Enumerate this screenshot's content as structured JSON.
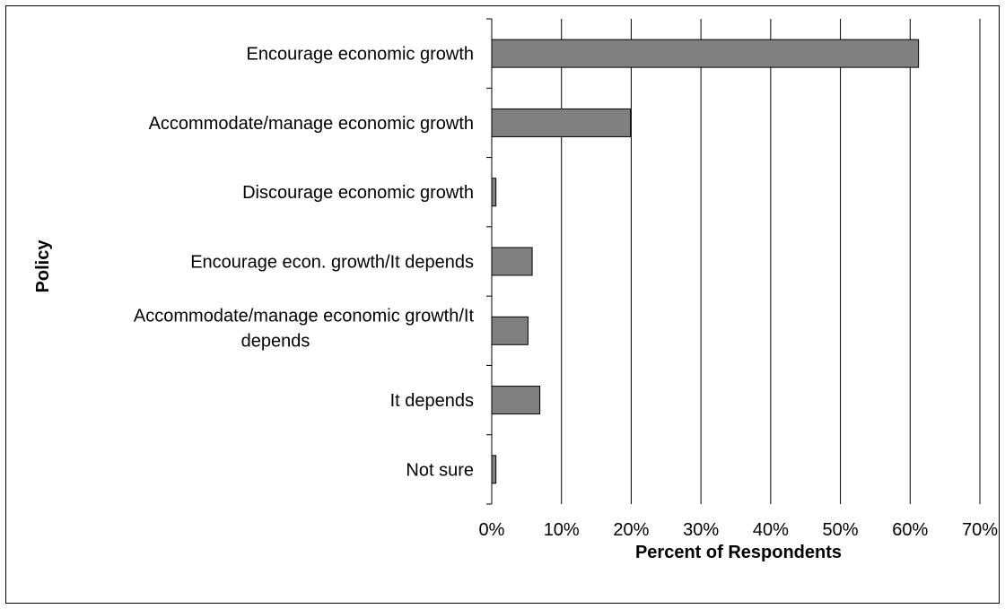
{
  "chart_data": {
    "type": "bar",
    "orientation": "horizontal",
    "categories": [
      "Encourage economic growth",
      "Accommodate/manage economic growth",
      "Discourage economic growth",
      "Encourage econ. growth/It depends",
      "Accommodate/manage economic growth/It depends",
      "It depends",
      "Not sure"
    ],
    "category_label_lines": [
      [
        "Encourage economic growth"
      ],
      [
        "Accommodate/manage economic growth"
      ],
      [
        "Discourage economic growth"
      ],
      [
        "Encourage econ. growth/It depends"
      ],
      [
        "Accommodate/manage economic growth/It",
        "depends"
      ],
      [
        "It depends"
      ],
      [
        "Not sure"
      ]
    ],
    "values": [
      61.2,
      19.9,
      0.6,
      5.8,
      5.2,
      6.9,
      0.6
    ],
    "unit": "%",
    "title": "",
    "xlabel": "Percent of Respondents",
    "ylabel": "Policy",
    "xlim": [
      0,
      70
    ],
    "xticks": [
      0,
      10,
      20,
      30,
      40,
      50,
      60,
      70
    ],
    "xtick_labels": [
      "0%",
      "10%",
      "20%",
      "30%",
      "40%",
      "50%",
      "60%",
      "70%"
    ],
    "grid": "vertical",
    "legend": "none",
    "bar_color": "#808080",
    "bar_edge_color": "#000000"
  }
}
